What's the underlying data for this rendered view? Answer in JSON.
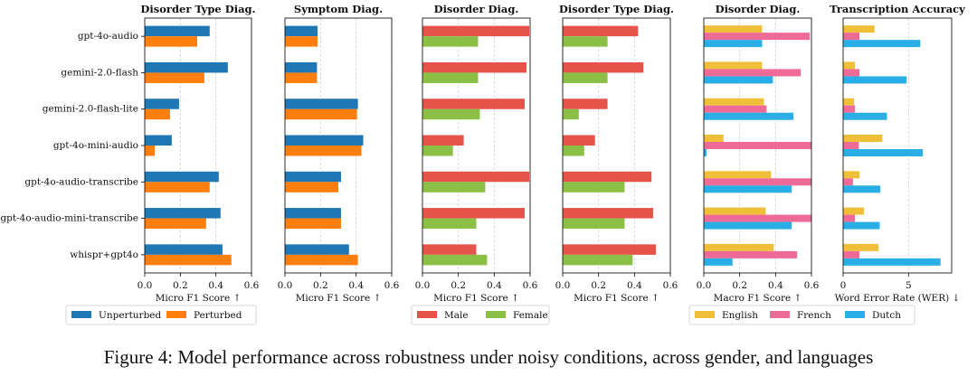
{
  "chart_data": [
    {
      "type": "bar",
      "orientation": "horizontal",
      "title": "Disorder Type Diag.",
      "xlabel": "Micro F1 Score ↑",
      "categories": [
        "gpt-4o-audio",
        "gemini-2.0-flash",
        "gemini-2.0-flash-lite",
        "gpt-4o-mini-audio",
        "gpt-4o-audio-transcribe",
        "gpt-4o-audio-mini-transcribe",
        "whispr+gpt4o"
      ],
      "xlim": [
        0,
        0.6
      ],
      "xticks": [
        {
          "value": 0,
          "label": "0.0"
        },
        0.2,
        0.4,
        0.6
      ],
      "grid": true,
      "legend": "below",
      "series": [
        {
          "name": "Unperturbed",
          "color": "#1f77b4",
          "values": [
            0.365,
            0.467,
            0.193,
            0.152,
            0.416,
            0.426,
            0.437
          ]
        },
        {
          "name": "Perturbed",
          "color": "#ff7f0e",
          "values": [
            0.295,
            0.335,
            0.142,
            0.056,
            0.365,
            0.345,
            0.487
          ]
        }
      ]
    },
    {
      "type": "bar",
      "orientation": "horizontal",
      "title": "Symptom Diag.",
      "xlabel": "Micro F1 Score ↑",
      "xlim": [
        0,
        0.6
      ],
      "xticks": [
        {
          "value": 0,
          "label": "0.0"
        },
        0.2,
        0.4,
        0.6
      ],
      "grid": true,
      "series": [
        {
          "color": "#1f77b4",
          "values": [
            0.183,
            0.18,
            0.41,
            0.44,
            0.315,
            0.315,
            0.36
          ]
        },
        {
          "color": "#ff7f0e",
          "values": [
            0.183,
            0.18,
            0.405,
            0.43,
            0.3,
            0.315,
            0.41
          ]
        }
      ]
    },
    {
      "type": "bar",
      "orientation": "horizontal",
      "title": "Disorder Diag.",
      "xlabel": "Micro F1 Score ↑",
      "xlim": [
        0,
        0.6
      ],
      "xticks": [
        {
          "value": 0,
          "label": "0.0"
        },
        0.2,
        0.4,
        0.6
      ],
      "grid": true,
      "legend": "below",
      "series": [
        {
          "name": "Male",
          "color": "#e5534b",
          "values": [
            0.595,
            0.58,
            0.57,
            0.23,
            0.595,
            0.57,
            0.3
          ]
        },
        {
          "name": "Female",
          "color": "#8bbf45",
          "values": [
            0.31,
            0.31,
            0.32,
            0.17,
            0.35,
            0.3,
            0.36
          ]
        }
      ]
    },
    {
      "type": "bar",
      "orientation": "horizontal",
      "title": "Disorder Type Diag.",
      "xlabel": "Micro F1 Score ↑",
      "xlim": [
        0,
        0.6
      ],
      "xticks": [
        {
          "value": 0,
          "label": "0.0"
        },
        0.2,
        0.4,
        0.6
      ],
      "grid": true,
      "series": [
        {
          "color": "#e5534b",
          "values": [
            0.42,
            0.45,
            0.25,
            0.18,
            0.495,
            0.505,
            0.52
          ]
        },
        {
          "color": "#8bbf45",
          "values": [
            0.25,
            0.25,
            0.09,
            0.12,
            0.345,
            0.345,
            0.39
          ]
        }
      ]
    },
    {
      "type": "bar",
      "orientation": "horizontal",
      "title": "Disorder Diag.",
      "xlabel": "Macro F1 Score ↑",
      "xlim": [
        0,
        0.6
      ],
      "xticks": [
        {
          "value": 0,
          "label": "0.0"
        },
        0.2,
        0.4,
        0.6
      ],
      "grid": true,
      "legend": "below",
      "series": [
        {
          "name": "English",
          "color": "#f0bf3a",
          "values": [
            0.325,
            0.325,
            0.335,
            0.11,
            0.375,
            0.345,
            0.39
          ]
        },
        {
          "name": "French",
          "color": "#ee6a97",
          "values": [
            0.59,
            0.54,
            0.35,
            0.6,
            0.6,
            0.6,
            0.52
          ]
        },
        {
          "name": "Dutch",
          "color": "#2aaee6",
          "values": [
            0.325,
            0.385,
            0.5,
            0.015,
            0.49,
            0.49,
            0.16
          ]
        }
      ]
    },
    {
      "type": "bar",
      "orientation": "horizontal",
      "title": "Transcription Accuracy",
      "xlabel": "Word Error Rate (WER) ↓",
      "xlim": [
        0,
        8.3
      ],
      "xticks": [
        0,
        5
      ],
      "grid": true,
      "series": [
        {
          "color": "#f0bf3a",
          "values": [
            2.4,
            0.9,
            0.85,
            3.0,
            1.25,
            1.6,
            2.7
          ]
        },
        {
          "color": "#ee6a97",
          "values": [
            1.25,
            1.25,
            0.9,
            1.2,
            0.75,
            0.9,
            1.25
          ]
        },
        {
          "color": "#2aaee6",
          "values": [
            5.9,
            4.85,
            3.35,
            6.1,
            2.85,
            2.8,
            7.45
          ]
        }
      ]
    }
  ],
  "caption": "Figure 4: Model performance across robustness under noisy conditions, across gender, and languages"
}
